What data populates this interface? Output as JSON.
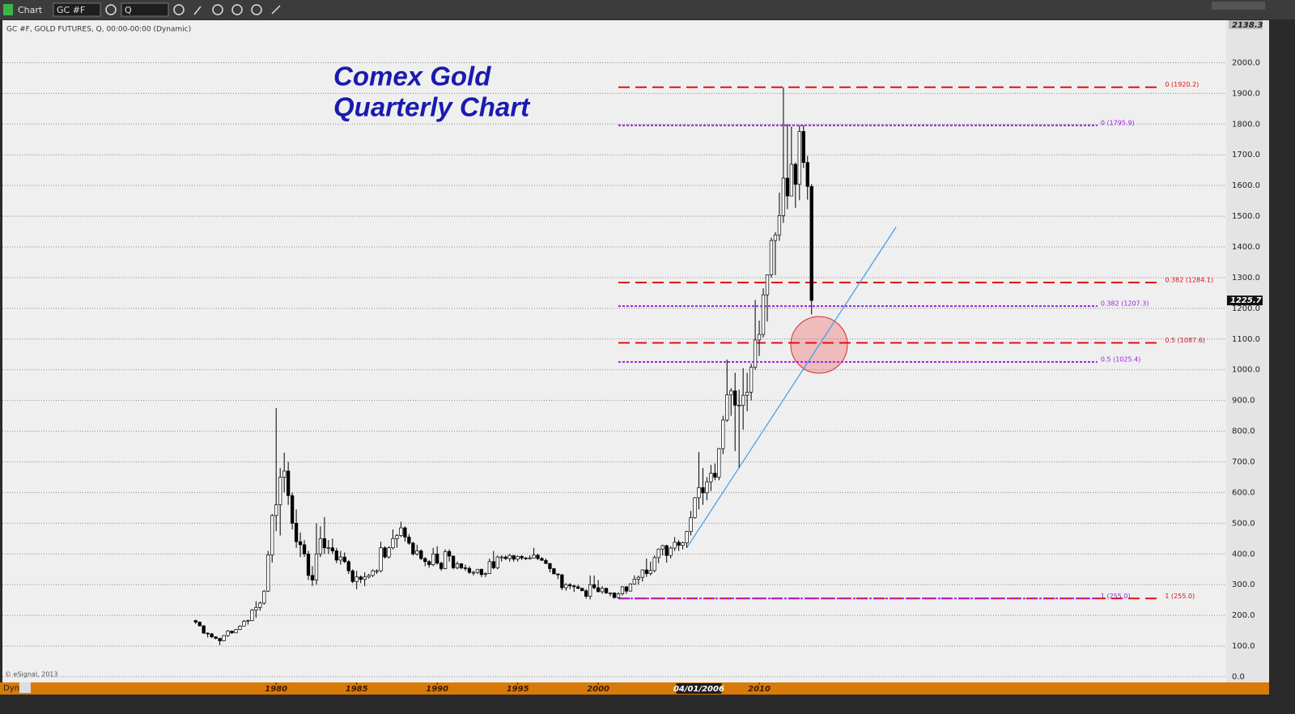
{
  "toolbar": {
    "window_title": "Chart",
    "symbol": "GC #F",
    "interval": "Q",
    "status": "Dyn"
  },
  "chart_data": {
    "type": "candlestick",
    "header": "GC #F, GOLD FUTURES, Q, 00:00-00:00 (Dynamic)",
    "title_lines": [
      "Comex Gold",
      "Quarterly Chart"
    ],
    "copyright": "© eSignal, 2013",
    "xlim": [
      1963,
      2039
    ],
    "xticks": [
      1980,
      1985,
      1990,
      1995,
      2000,
      2010
    ],
    "x_cursor": {
      "value": 2006.25,
      "label": "04/01/2006"
    },
    "ylim": [
      0,
      2138.3
    ],
    "yticks": [
      {
        "value": 0,
        "label": "0.0"
      },
      {
        "value": 100,
        "label": "100.0"
      },
      {
        "value": 200,
        "label": "200.0"
      },
      {
        "value": 300,
        "label": "300.0"
      },
      {
        "value": 400,
        "label": "400.0"
      },
      {
        "value": 500,
        "label": "500.0"
      },
      {
        "value": 600,
        "label": "600.0"
      },
      {
        "value": 700,
        "label": "700.0"
      },
      {
        "value": 800,
        "label": "800.0"
      },
      {
        "value": 900,
        "label": "900.0"
      },
      {
        "value": 1000,
        "label": "1000.0"
      },
      {
        "value": 1100,
        "label": "1100.0"
      },
      {
        "value": 1200,
        "label": "1200.0"
      },
      {
        "value": 1300,
        "label": "1300.0"
      },
      {
        "value": 1400,
        "label": "1400.0"
      },
      {
        "value": 1500,
        "label": "1500.0"
      },
      {
        "value": 1600,
        "label": "1600.0"
      },
      {
        "value": 1700,
        "label": "1700.0"
      },
      {
        "value": 1800,
        "label": "1800.0"
      },
      {
        "value": 1900,
        "label": "1900.0"
      },
      {
        "value": 2000,
        "label": "2000.0"
      }
    ],
    "grid": true,
    "x": [
      1975,
      1975.25,
      1975.5,
      1975.75,
      1976,
      1976.25,
      1976.5,
      1976.75,
      1977,
      1977.25,
      1977.5,
      1977.75,
      1978,
      1978.25,
      1978.5,
      1978.75,
      1979,
      1979.25,
      1979.5,
      1979.75,
      1980,
      1980.25,
      1980.5,
      1980.75,
      1981,
      1981.25,
      1981.5,
      1981.75,
      1982,
      1982.25,
      1982.5,
      1982.75,
      1983,
      1983.25,
      1983.5,
      1983.75,
      1984,
      1984.25,
      1984.5,
      1984.75,
      1985,
      1985.25,
      1985.5,
      1985.75,
      1986,
      1986.25,
      1986.5,
      1986.75,
      1987,
      1987.25,
      1987.5,
      1987.75,
      1988,
      1988.25,
      1988.5,
      1988.75,
      1989,
      1989.25,
      1989.5,
      1989.75,
      1990,
      1990.25,
      1990.5,
      1990.75,
      1991,
      1991.25,
      1991.5,
      1991.75,
      1992,
      1992.25,
      1992.5,
      1992.75,
      1993,
      1993.25,
      1993.5,
      1993.75,
      1994,
      1994.25,
      1994.5,
      1994.75,
      1995,
      1995.25,
      1995.5,
      1995.75,
      1996,
      1996.25,
      1996.5,
      1996.75,
      1997,
      1997.25,
      1997.5,
      1997.75,
      1998,
      1998.25,
      1998.5,
      1998.75,
      1999,
      1999.25,
      1999.5,
      1999.75,
      2000,
      2000.25,
      2000.5,
      2000.75,
      2001,
      2001.25,
      2001.5,
      2001.75,
      2002,
      2002.25,
      2002.5,
      2002.75,
      2003,
      2003.25,
      2003.5,
      2003.75,
      2004,
      2004.25,
      2004.5,
      2004.75,
      2005,
      2005.25,
      2005.5,
      2005.75,
      2006,
      2006.25,
      2006.5,
      2006.75,
      2007,
      2007.25,
      2007.5,
      2007.75,
      2008,
      2008.25,
      2008.5,
      2008.75,
      2009,
      2009.25,
      2009.5,
      2009.75,
      2010,
      2010.25,
      2010.5,
      2010.75,
      2011,
      2011.25,
      2011.5,
      2011.75,
      2012,
      2012.25,
      2012.5,
      2012.75,
      2013,
      2013.25
    ],
    "ohlc": [
      [
        183,
        186,
        172,
        178
      ],
      [
        178,
        180,
        164,
        166
      ],
      [
        166,
        168,
        140,
        142
      ],
      [
        142,
        145,
        128,
        140
      ],
      [
        140,
        142,
        126,
        130
      ],
      [
        130,
        132,
        122,
        125
      ],
      [
        125,
        127,
        103,
        117
      ],
      [
        117,
        136,
        115,
        134
      ],
      [
        134,
        152,
        130,
        149
      ],
      [
        149,
        150,
        140,
        143
      ],
      [
        143,
        155,
        142,
        154
      ],
      [
        154,
        168,
        152,
        165
      ],
      [
        165,
        185,
        164,
        181
      ],
      [
        181,
        186,
        170,
        183
      ],
      [
        183,
        220,
        181,
        217
      ],
      [
        217,
        246,
        192,
        226
      ],
      [
        226,
        245,
        215,
        240
      ],
      [
        240,
        282,
        235,
        279
      ],
      [
        279,
        410,
        276,
        397
      ],
      [
        397,
        530,
        372,
        525
      ],
      [
        525,
        875,
        474,
        560
      ],
      [
        560,
        680,
        460,
        650
      ],
      [
        650,
        730,
        600,
        670
      ],
      [
        670,
        700,
        560,
        590
      ],
      [
        590,
        600,
        480,
        500
      ],
      [
        500,
        545,
        420,
        440
      ],
      [
        440,
        470,
        390,
        430
      ],
      [
        430,
        445,
        390,
        400
      ],
      [
        400,
        410,
        315,
        330
      ],
      [
        330,
        360,
        296,
        315
      ],
      [
        315,
        500,
        300,
        400
      ],
      [
        400,
        490,
        390,
        450
      ],
      [
        450,
        520,
        400,
        420
      ],
      [
        420,
        445,
        400,
        420
      ],
      [
        420,
        450,
        400,
        410
      ],
      [
        410,
        420,
        370,
        380
      ],
      [
        380,
        410,
        365,
        390
      ],
      [
        390,
        405,
        370,
        375
      ],
      [
        375,
        380,
        335,
        345
      ],
      [
        345,
        350,
        305,
        310
      ],
      [
        310,
        345,
        285,
        325
      ],
      [
        325,
        330,
        305,
        317
      ],
      [
        317,
        340,
        295,
        325
      ],
      [
        325,
        335,
        320,
        330
      ],
      [
        330,
        350,
        325,
        345
      ],
      [
        345,
        350,
        335,
        345
      ],
      [
        345,
        440,
        340,
        420
      ],
      [
        420,
        425,
        385,
        390
      ],
      [
        390,
        425,
        385,
        420
      ],
      [
        420,
        480,
        415,
        450
      ],
      [
        450,
        465,
        420,
        460
      ],
      [
        460,
        505,
        455,
        485
      ],
      [
        485,
        490,
        440,
        455
      ],
      [
        455,
        465,
        430,
        435
      ],
      [
        435,
        440,
        395,
        400
      ],
      [
        400,
        430,
        395,
        410
      ],
      [
        410,
        415,
        380,
        385
      ],
      [
        385,
        390,
        360,
        375
      ],
      [
        375,
        380,
        355,
        365
      ],
      [
        365,
        420,
        360,
        400
      ],
      [
        400,
        425,
        365,
        370
      ],
      [
        370,
        375,
        345,
        352
      ],
      [
        352,
        415,
        350,
        408
      ],
      [
        408,
        415,
        375,
        393
      ],
      [
        393,
        395,
        350,
        355
      ],
      [
        355,
        375,
        350,
        368
      ],
      [
        368,
        370,
        350,
        355
      ],
      [
        355,
        365,
        345,
        353
      ],
      [
        353,
        360,
        335,
        340
      ],
      [
        340,
        345,
        330,
        340
      ],
      [
        340,
        350,
        335,
        350
      ],
      [
        350,
        352,
        325,
        333
      ],
      [
        333,
        340,
        325,
        336
      ],
      [
        336,
        385,
        335,
        375
      ],
      [
        375,
        410,
        350,
        355
      ],
      [
        355,
        395,
        350,
        390
      ],
      [
        390,
        395,
        375,
        390
      ],
      [
        390,
        395,
        380,
        385
      ],
      [
        385,
        400,
        375,
        395
      ],
      [
        395,
        395,
        375,
        383
      ],
      [
        383,
        395,
        375,
        392
      ],
      [
        392,
        396,
        380,
        387
      ],
      [
        387,
        390,
        380,
        385
      ],
      [
        385,
        395,
        382,
        387
      ],
      [
        387,
        420,
        385,
        396
      ],
      [
        396,
        400,
        380,
        385
      ],
      [
        385,
        390,
        378,
        379
      ],
      [
        379,
        385,
        367,
        369
      ],
      [
        369,
        370,
        340,
        352
      ],
      [
        352,
        355,
        335,
        335
      ],
      [
        335,
        335,
        318,
        332
      ],
      [
        332,
        335,
        282,
        290
      ],
      [
        290,
        305,
        280,
        300
      ],
      [
        300,
        305,
        285,
        296
      ],
      [
        296,
        300,
        276,
        293
      ],
      [
        293,
        300,
        285,
        288
      ],
      [
        288,
        290,
        280,
        280
      ],
      [
        280,
        285,
        255,
        262
      ],
      [
        262,
        330,
        252,
        300
      ],
      [
        300,
        330,
        285,
        290
      ],
      [
        290,
        315,
        275,
        277
      ],
      [
        277,
        295,
        270,
        288
      ],
      [
        288,
        290,
        270,
        273
      ],
      [
        273,
        275,
        262,
        273
      ],
      [
        273,
        275,
        255,
        258
      ],
      [
        258,
        275,
        255,
        270
      ],
      [
        270,
        295,
        265,
        293
      ],
      [
        293,
        295,
        270,
        279
      ],
      [
        279,
        305,
        278,
        302
      ],
      [
        302,
        330,
        300,
        318
      ],
      [
        318,
        330,
        300,
        324
      ],
      [
        324,
        350,
        310,
        348
      ],
      [
        348,
        385,
        325,
        336
      ],
      [
        336,
        375,
        330,
        346
      ],
      [
        346,
        395,
        340,
        388
      ],
      [
        388,
        418,
        370,
        416
      ],
      [
        416,
        430,
        395,
        427
      ],
      [
        427,
        430,
        372,
        395
      ],
      [
        395,
        425,
        385,
        419
      ],
      [
        419,
        455,
        410,
        438
      ],
      [
        438,
        445,
        410,
        428
      ],
      [
        428,
        440,
        415,
        436
      ],
      [
        436,
        475,
        420,
        473
      ],
      [
        473,
        540,
        460,
        518
      ],
      [
        518,
        585,
        515,
        583
      ],
      [
        583,
        732,
        545,
        616
      ],
      [
        616,
        680,
        560,
        599
      ],
      [
        599,
        650,
        575,
        635
      ],
      [
        635,
        690,
        605,
        663
      ],
      [
        663,
        695,
        640,
        650
      ],
      [
        650,
        745,
        640,
        743
      ],
      [
        743,
        850,
        725,
        836
      ],
      [
        836,
        1033,
        830,
        918
      ],
      [
        918,
        940,
        850,
        931
      ],
      [
        931,
        990,
        735,
        884
      ],
      [
        884,
        935,
        681,
        884
      ],
      [
        884,
        1005,
        805,
        917
      ],
      [
        917,
        990,
        865,
        927
      ],
      [
        927,
        1020,
        900,
        1008
      ],
      [
        1008,
        1227,
        1000,
        1097
      ],
      [
        1097,
        1160,
        1045,
        1115
      ],
      [
        1115,
        1265,
        1105,
        1244
      ],
      [
        1244,
        1310,
        1157,
        1309
      ],
      [
        1309,
        1430,
        1300,
        1421
      ],
      [
        1421,
        1448,
        1308,
        1439
      ],
      [
        1439,
        1577,
        1420,
        1502
      ],
      [
        1502,
        1920.2,
        1478,
        1624
      ],
      [
        1624,
        1800,
        1523,
        1566
      ],
      [
        1566,
        1792,
        1565,
        1669
      ],
      [
        1669,
        1675,
        1527,
        1604
      ],
      [
        1604,
        1795.9,
        1552,
        1776
      ],
      [
        1776,
        1796,
        1657,
        1675
      ],
      [
        1675,
        1697,
        1554,
        1597
      ],
      [
        1597,
        1605,
        1180,
        1225.7
      ]
    ],
    "fib_levels": [
      {
        "label": "0 (1920.2)",
        "value": 1920.2,
        "color": "#e01010",
        "style": "dashed",
        "x": [
          2001.25,
          2035
        ]
      },
      {
        "label": "0.382 (1284.1)",
        "value": 1284.1,
        "color": "#e01010",
        "style": "dashed",
        "x": [
          2001.25,
          2035
        ]
      },
      {
        "label": "0.5 (1087.6)",
        "value": 1087.6,
        "color": "#e01010",
        "style": "dashed",
        "x": [
          2001.25,
          2035
        ]
      },
      {
        "label": "1 (255.0)",
        "value": 255.0,
        "color": "#e01010",
        "style": "dashed",
        "x": [
          2001.25,
          2035
        ]
      },
      {
        "label": "0 (1795.9)",
        "value": 1795.9,
        "color": "#9a22e0",
        "style": "dotted",
        "x": [
          2001.25,
          2031
        ]
      },
      {
        "label": "0.382 (1207.3)",
        "value": 1207.3,
        "color": "#9a22e0",
        "style": "dotted",
        "x": [
          2001.25,
          2031
        ]
      },
      {
        "label": "0.5 (1025.4)",
        "value": 1025.4,
        "color": "#9a22e0",
        "style": "dotted",
        "x": [
          2001.25,
          2031
        ]
      },
      {
        "label": "1 (255.0)",
        "value": 255.0,
        "color": "#9a22e0",
        "style": "dotted",
        "x": [
          2001.25,
          2031
        ]
      }
    ],
    "trendline": {
      "x": [
        2005.5,
        2018.5
      ],
      "y": [
        420,
        1465
      ],
      "color": "#3a9cf0"
    }
  }
}
